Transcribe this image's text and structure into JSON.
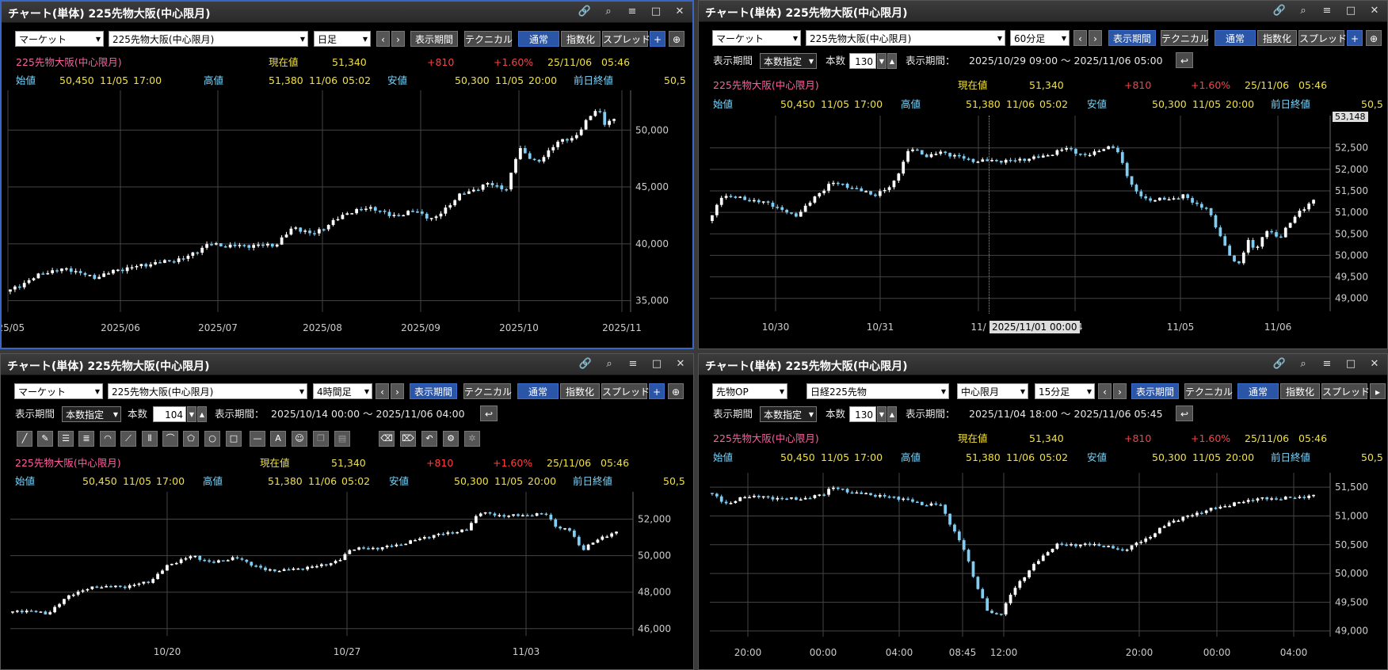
{
  "colors": {
    "up": "#ffffff",
    "down": "#7ecdf4",
    "grid": "#444444",
    "axis": "#cccccc"
  },
  "header": {
    "name": "225先物大阪(中心限月)",
    "price_label": "現在値",
    "price": "51,340",
    "change": "+810",
    "change_pct": "+1.60%",
    "date": "25/11/06",
    "time": "05:46"
  },
  "ohlc": {
    "open_label": "始値",
    "open": "50,450",
    "open_date": "11/05",
    "open_time": "17:00",
    "high_label": "高値",
    "high": "51,380",
    "high_date": "11/06",
    "high_time": "05:02",
    "low_label": "安値",
    "low": "50,300",
    "low_date": "11/05",
    "low_time": "20:00",
    "prev_label": "前日終値",
    "prev": "50,5"
  },
  "panels": [
    {
      "title": "チャート(単体) 225先物大阪(中心限月)",
      "market": "マーケット",
      "instrument": "225先物大阪(中心限月)",
      "interval": "日足",
      "period_btn": "表示期間",
      "tech_btn": "テクニカル",
      "normal_btn": "通常",
      "index_btn": "指数化",
      "spread_btn": "スプレッド"
    },
    {
      "title": "チャート(単体) 225先物大阪(中心限月)",
      "market": "マーケット",
      "instrument": "225先物大阪(中心限月)",
      "interval": "60分足",
      "period_btn": "表示期間",
      "tech_btn": "テクニカル",
      "normal_btn": "通常",
      "index_btn": "指数化",
      "spread_btn": "スプレッド",
      "period_label": "表示期間",
      "period_mode": "本数指定",
      "count_label": "本数",
      "count": "130",
      "range_label": "表示期間：",
      "range": "2025/10/29 09:00 ～ 2025/11/06 05:00",
      "cursor_label": "2025/11/01 00:00",
      "cursor_price": "53,148"
    },
    {
      "title": "チャート(単体) 225先物大阪(中心限月)",
      "market": "マーケット",
      "instrument": "225先物大阪(中心限月)",
      "interval": "4時間足",
      "period_btn": "表示期間",
      "tech_btn": "テクニカル",
      "normal_btn": "通常",
      "index_btn": "指数化",
      "spread_btn": "スプレッド",
      "period_label": "表示期間",
      "period_mode": "本数指定",
      "count_label": "本数",
      "count": "104",
      "range_label": "表示期間：",
      "range": "2025/10/14 00:00 ～ 2025/11/06 04:00"
    },
    {
      "title": "チャート(単体) 225先物大阪(中心限月)",
      "market": "先物OP",
      "instrument": "日経225先物",
      "contract": "中心限月",
      "interval": "15分足",
      "period_btn": "表示期間",
      "tech_btn": "テクニカル",
      "normal_btn": "通常",
      "index_btn": "指数化",
      "spread_btn": "スプレッド",
      "period_label": "表示期間",
      "period_mode": "本数指定",
      "count_label": "本数",
      "count": "130",
      "range_label": "表示期間：",
      "range": "2025/11/04 18:00 ～ 2025/11/06 05:45"
    }
  ],
  "chart_data": [
    {
      "type": "candlestick",
      "ylim": [
        34000,
        53500
      ],
      "yticks": [
        35000,
        40000,
        45000,
        50000
      ],
      "ytick_labels": [
        "35,000",
        "40,000",
        "45,000",
        "50,000"
      ],
      "xtick_labels": [
        "025/05",
        "2025/06",
        "2025/07",
        "2025/08",
        "2025/09",
        "2025/10",
        "2025/11"
      ],
      "path": [
        [
          0,
          35800
        ],
        [
          0.06,
          37500
        ],
        [
          0.1,
          37800
        ],
        [
          0.14,
          37000
        ],
        [
          0.18,
          37700
        ],
        [
          0.23,
          38200
        ],
        [
          0.29,
          38700
        ],
        [
          0.33,
          40000
        ],
        [
          0.36,
          39800
        ],
        [
          0.44,
          39900
        ],
        [
          0.47,
          41500
        ],
        [
          0.5,
          40800
        ],
        [
          0.56,
          42800
        ],
        [
          0.6,
          43200
        ],
        [
          0.63,
          42400
        ],
        [
          0.67,
          42900
        ],
        [
          0.7,
          42100
        ],
        [
          0.74,
          44200
        ],
        [
          0.79,
          45300
        ],
        [
          0.82,
          44800
        ],
        [
          0.84,
          48500
        ],
        [
          0.87,
          47000
        ],
        [
          0.9,
          48900
        ],
        [
          0.93,
          49300
        ],
        [
          0.96,
          51400
        ],
        [
          0.97,
          52000
        ],
        [
          0.98,
          50600
        ],
        [
          1,
          50900
        ]
      ]
    },
    {
      "type": "candlestick",
      "ylim": [
        48700,
        53250
      ],
      "yticks": [
        49000,
        49500,
        50000,
        50500,
        51000,
        51500,
        52000,
        52500
      ],
      "ytick_labels": [
        "49,000",
        "49,500",
        "50,000",
        "50,500",
        "51,000",
        "51,500",
        "52,000",
        "52,500"
      ],
      "xtick_labels": [
        "10/30",
        "10/31",
        "11/",
        "/04",
        "11/05",
        "11/06"
      ],
      "path": [
        [
          0,
          50800
        ],
        [
          0.02,
          51400
        ],
        [
          0.06,
          51300
        ],
        [
          0.1,
          51200
        ],
        [
          0.14,
          50900
        ],
        [
          0.17,
          51300
        ],
        [
          0.2,
          51700
        ],
        [
          0.23,
          51600
        ],
        [
          0.27,
          51400
        ],
        [
          0.3,
          51600
        ],
        [
          0.33,
          52500
        ],
        [
          0.36,
          52300
        ],
        [
          0.38,
          52400
        ],
        [
          0.41,
          52300
        ],
        [
          0.43,
          52200
        ],
        [
          0.5,
          52200
        ],
        [
          0.55,
          52300
        ],
        [
          0.59,
          52500
        ],
        [
          0.62,
          52300
        ],
        [
          0.65,
          52500
        ],
        [
          0.67,
          52500
        ],
        [
          0.7,
          51500
        ],
        [
          0.72,
          51300
        ],
        [
          0.76,
          51300
        ],
        [
          0.78,
          51400
        ],
        [
          0.8,
          51200
        ],
        [
          0.82,
          51100
        ],
        [
          0.84,
          50500
        ],
        [
          0.87,
          49700
        ],
        [
          0.89,
          50400
        ],
        [
          0.9,
          50100
        ],
        [
          0.92,
          50600
        ],
        [
          0.94,
          50400
        ],
        [
          0.97,
          51000
        ],
        [
          1,
          51300
        ]
      ]
    },
    {
      "type": "candlestick",
      "ylim": [
        45600,
        53500
      ],
      "yticks": [
        46000,
        48000,
        50000,
        52000
      ],
      "ytick_labels": [
        "46,000",
        "48,000",
        "50,000",
        "52,000"
      ],
      "xtick_labels": [
        "10/20",
        "10/27",
        "11/03"
      ],
      "path": [
        [
          0,
          46900
        ],
        [
          0.03,
          47000
        ],
        [
          0.06,
          46800
        ],
        [
          0.1,
          47900
        ],
        [
          0.14,
          48300
        ],
        [
          0.19,
          48300
        ],
        [
          0.23,
          48600
        ],
        [
          0.26,
          49500
        ],
        [
          0.3,
          50000
        ],
        [
          0.33,
          49600
        ],
        [
          0.37,
          49900
        ],
        [
          0.42,
          49200
        ],
        [
          0.45,
          49200
        ],
        [
          0.5,
          49400
        ],
        [
          0.54,
          49700
        ],
        [
          0.56,
          50400
        ],
        [
          0.6,
          50400
        ],
        [
          0.64,
          50600
        ],
        [
          0.68,
          51000
        ],
        [
          0.71,
          51200
        ],
        [
          0.75,
          51400
        ],
        [
          0.77,
          52400
        ],
        [
          0.8,
          52200
        ],
        [
          0.84,
          52200
        ],
        [
          0.88,
          52300
        ],
        [
          0.9,
          51500
        ],
        [
          0.92,
          51400
        ],
        [
          0.94,
          50300
        ],
        [
          0.97,
          51000
        ],
        [
          1,
          51300
        ]
      ]
    },
    {
      "type": "candlestick",
      "ylim": [
        48900,
        51750
      ],
      "yticks": [
        49000,
        49500,
        50000,
        50500,
        51000,
        51500
      ],
      "ytick_labels": [
        "49,000",
        "49,500",
        "50,000",
        "50,500",
        "51,000",
        "51,500"
      ],
      "xtick_labels": [
        "20:00",
        "00:00",
        "04:00",
        "08:45",
        "12:00",
        "20:00",
        "00:00",
        "04:00"
      ],
      "path": [
        [
          0,
          51400
        ],
        [
          0.03,
          51200
        ],
        [
          0.06,
          51350
        ],
        [
          0.12,
          51300
        ],
        [
          0.16,
          51300
        ],
        [
          0.19,
          51400
        ],
        [
          0.2,
          51500
        ],
        [
          0.24,
          51400
        ],
        [
          0.32,
          51300
        ],
        [
          0.35,
          51200
        ],
        [
          0.38,
          51200
        ],
        [
          0.4,
          50800
        ],
        [
          0.42,
          50400
        ],
        [
          0.44,
          49800
        ],
        [
          0.46,
          49300
        ],
        [
          0.48,
          49300
        ],
        [
          0.5,
          49700
        ],
        [
          0.53,
          50100
        ],
        [
          0.57,
          50500
        ],
        [
          0.6,
          50500
        ],
        [
          0.64,
          50500
        ],
        [
          0.68,
          50400
        ],
        [
          0.72,
          50600
        ],
        [
          0.76,
          50900
        ],
        [
          0.79,
          51000
        ],
        [
          0.82,
          51100
        ],
        [
          0.86,
          51200
        ],
        [
          0.9,
          51300
        ],
        [
          0.94,
          51300
        ],
        [
          1,
          51350
        ]
      ]
    }
  ]
}
